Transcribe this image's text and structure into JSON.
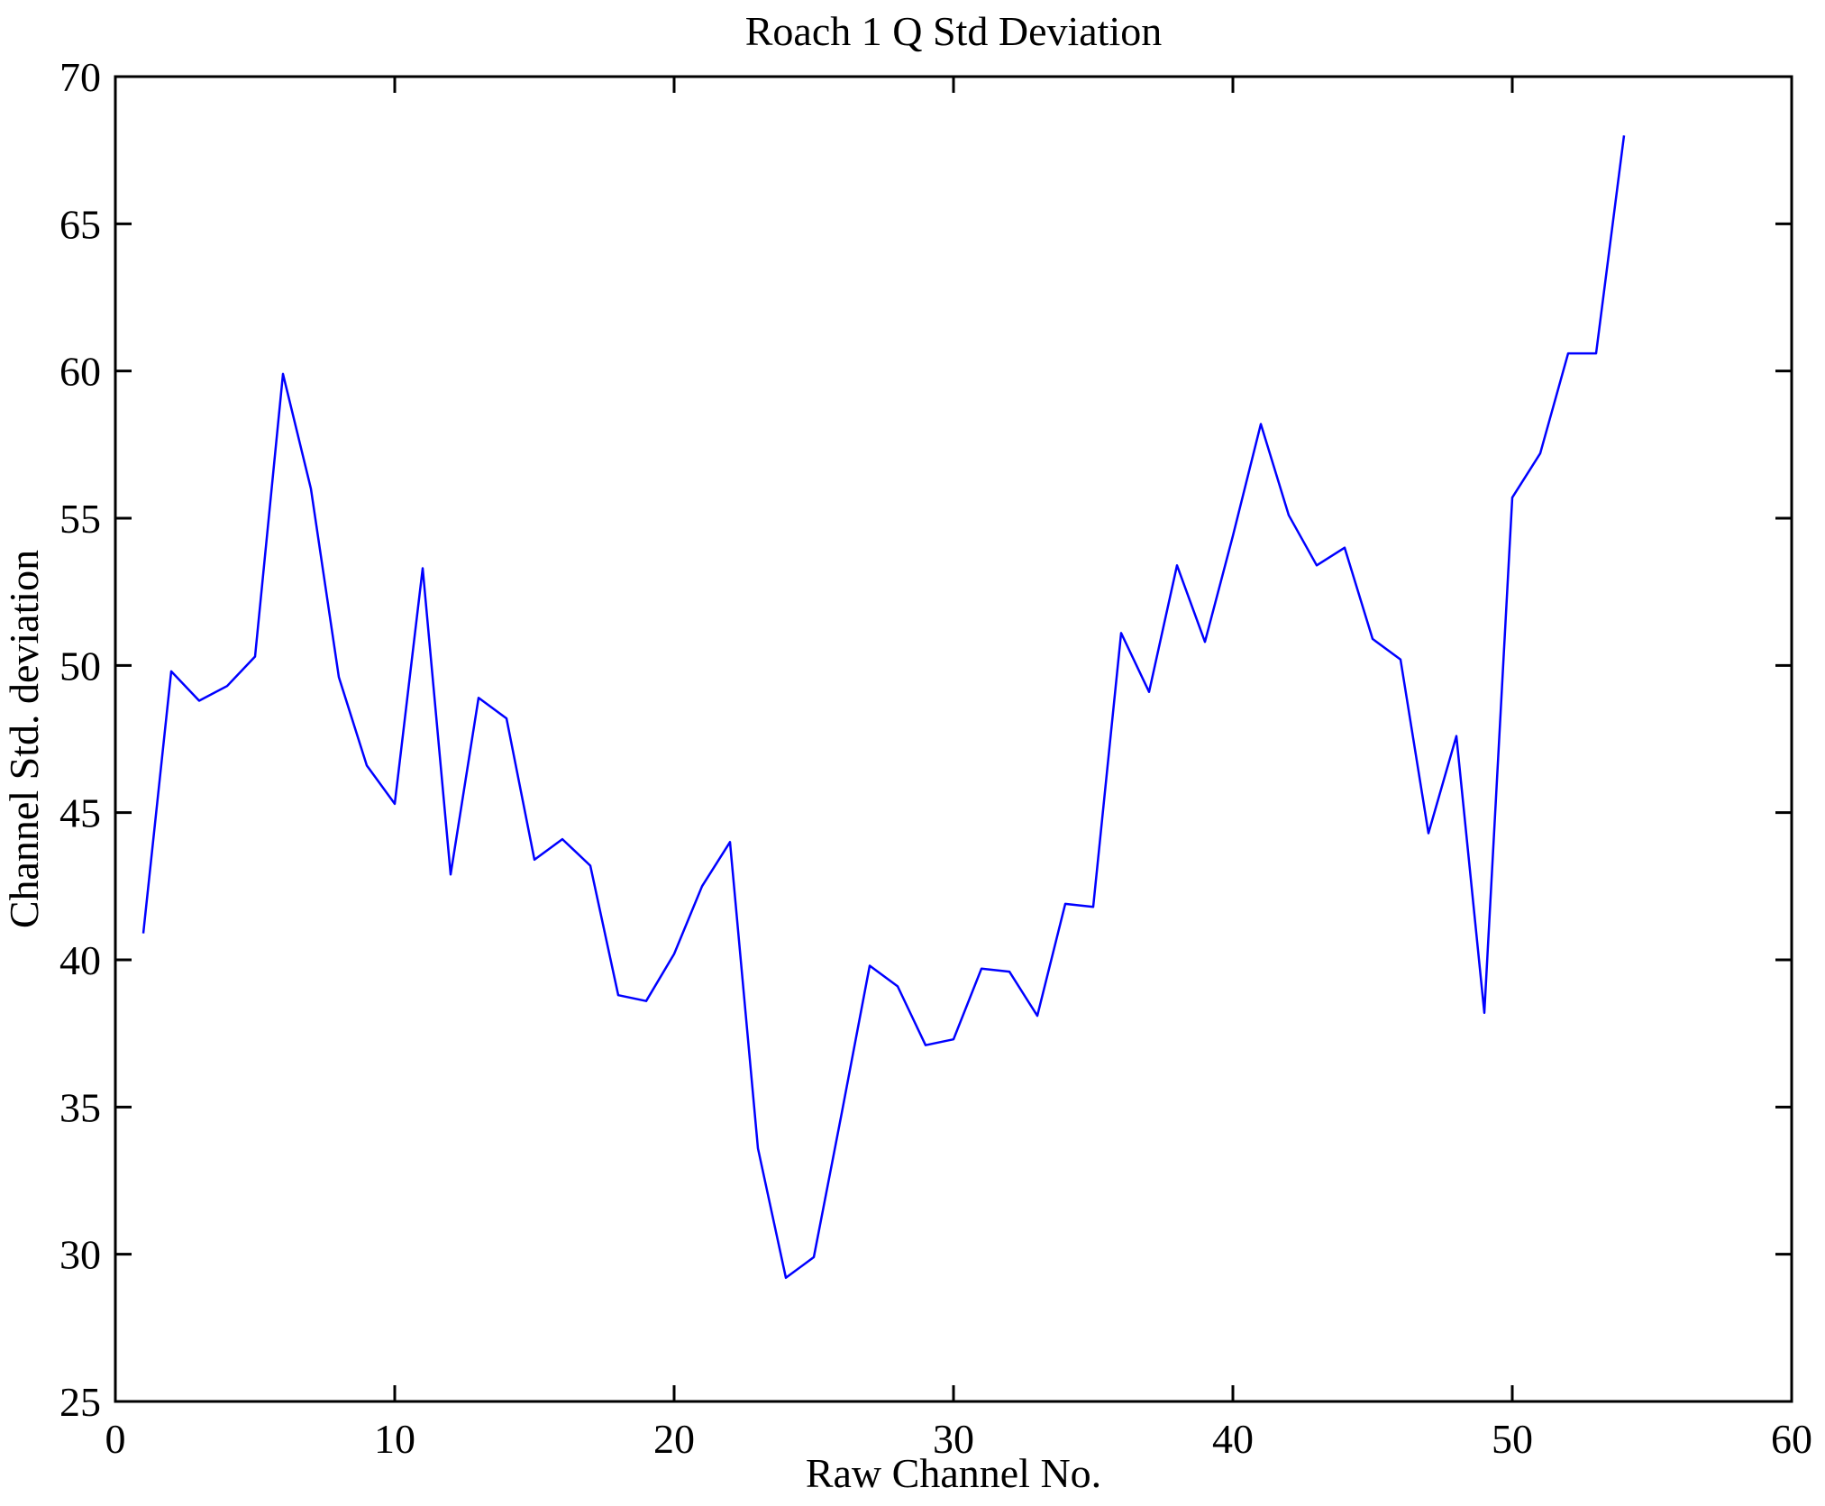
{
  "figure": {
    "background_color": "#ffffff",
    "axis_color": "#000000"
  },
  "chart_data": {
    "type": "line",
    "title": "Roach 1 Q Std Deviation",
    "xlabel": "Raw Channel No.",
    "ylabel": "Channel Std. deviation",
    "xlim": [
      0,
      60
    ],
    "ylim": [
      25,
      70
    ],
    "x_ticks": [
      0,
      10,
      20,
      30,
      40,
      50,
      60
    ],
    "y_ticks": [
      25,
      30,
      35,
      40,
      45,
      50,
      55,
      60,
      65,
      70
    ],
    "grid": false,
    "legend": "none",
    "line_color": "#0000ff",
    "series": [
      {
        "name": "Channel Std. deviation",
        "x": [
          1,
          2,
          3,
          4,
          5,
          6,
          7,
          8,
          9,
          10,
          11,
          12,
          13,
          14,
          15,
          16,
          17,
          18,
          19,
          20,
          21,
          22,
          23,
          24,
          25,
          26,
          27,
          28,
          29,
          30,
          31,
          32,
          33,
          34,
          35,
          36,
          37,
          38,
          39,
          40,
          41,
          42,
          43,
          44,
          45,
          46,
          47,
          48,
          49,
          50,
          51,
          52,
          53,
          54
        ],
        "y": [
          40.9,
          49.8,
          48.8,
          49.3,
          50.3,
          59.9,
          56.0,
          49.6,
          46.6,
          45.3,
          53.3,
          42.9,
          48.9,
          48.2,
          43.4,
          44.1,
          43.2,
          38.8,
          38.6,
          40.2,
          42.5,
          44.0,
          33.6,
          29.2,
          29.9,
          34.8,
          39.8,
          39.1,
          37.1,
          37.3,
          39.7,
          39.6,
          38.1,
          41.9,
          41.8,
          51.1,
          49.1,
          53.4,
          50.8,
          54.4,
          58.2,
          55.1,
          53.4,
          54.0,
          50.9,
          50.2,
          44.3,
          47.6,
          38.2,
          55.7,
          57.2,
          60.6,
          60.6,
          68.0
        ]
      }
    ]
  }
}
